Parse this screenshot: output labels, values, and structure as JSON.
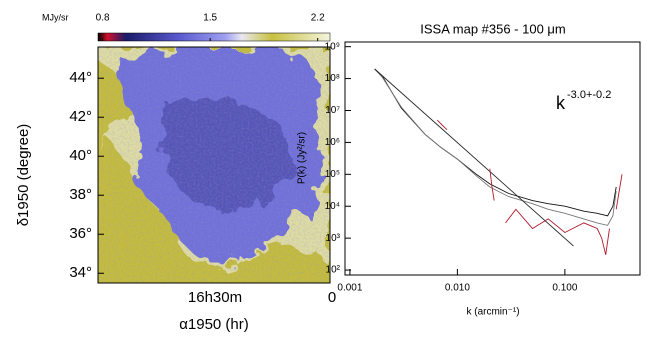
{
  "chart_data": [
    {
      "type": "map",
      "colorbar_label": "MJy/sr",
      "colorbar_lim": [
        0.77,
        2.28
      ],
      "colorbar_ticks": [
        0.8,
        1.5,
        2.2
      ],
      "ylabel": "δ1950 (degree)",
      "ylim": [
        33.5,
        45.6
      ],
      "yticks": [
        {
          "value": 34,
          "label": "34°"
        },
        {
          "value": 36,
          "label": "36°"
        },
        {
          "value": 38,
          "label": "38°"
        },
        {
          "value": 40,
          "label": "40°"
        },
        {
          "value": 42,
          "label": "42°"
        },
        {
          "value": 44,
          "label": "44°"
        }
      ],
      "xlabel": "α1950 (hr)",
      "xtick_labels": [
        "16h30m",
        "0"
      ]
    },
    {
      "type": "line",
      "title": "ISSA map #356 - 100 μm",
      "annotation": {
        "base": "k",
        "exponent": "-3.0+-0.2"
      },
      "xlabel": "k (arcmin⁻¹)",
      "ylabel": "P(k) (Jy²/sr)",
      "log_x": true,
      "log_y": true,
      "xlim": [
        0.0009,
        0.5
      ],
      "ylim": [
        70,
        1400000000
      ],
      "xticks": [
        {
          "value": 0.001,
          "label": "0.001"
        },
        {
          "value": 0.01,
          "label": "0.010"
        },
        {
          "value": 0.1,
          "label": "0.100"
        }
      ],
      "yticks": [
        {
          "value": 100,
          "label": "10²"
        },
        {
          "value": 1000,
          "label": "10³"
        },
        {
          "value": 10000,
          "label": "10⁴"
        },
        {
          "value": 100000,
          "label": "10⁵"
        },
        {
          "value": 1000000,
          "label": "10⁶"
        },
        {
          "value": 10000000,
          "label": "10⁷"
        },
        {
          "value": 100000000,
          "label": "10⁸"
        },
        {
          "value": 1000000000,
          "label": "10⁹"
        }
      ],
      "series": [
        {
          "color": "#111111",
          "x": [
            0.0017,
            0.002,
            0.003,
            0.005,
            0.007,
            0.01,
            0.015,
            0.02,
            0.03,
            0.05,
            0.07,
            0.1,
            0.15,
            0.2,
            0.25,
            0.28,
            0.3
          ],
          "values": [
            200000000,
            120000000,
            12000000,
            1800000,
            700000,
            300000,
            100000,
            50000,
            25000,
            15000,
            12000,
            10000,
            7000,
            6000,
            5000,
            10000,
            40000
          ]
        },
        {
          "color": "#777777",
          "x": [
            0.0017,
            0.002,
            0.003,
            0.005,
            0.007,
            0.01,
            0.015,
            0.02,
            0.03,
            0.05,
            0.07,
            0.1,
            0.15,
            0.2,
            0.25,
            0.28,
            0.3
          ],
          "values": [
            200000000,
            110000000,
            13000000,
            1800000,
            700000,
            300000,
            90000,
            40000,
            20000,
            12000,
            8000,
            6000,
            4000,
            3000,
            2500,
            5000,
            30000
          ]
        },
        {
          "color": "#222222",
          "x": [
            0.0017,
            0.12
          ],
          "values": [
            200000000,
            570
          ]
        },
        {
          "color": "#b0182a",
          "x": [
            0.0065,
            0.0072,
            0.008,
            null,
            0.02,
            0.021,
            0.022,
            null,
            0.028,
            0.035,
            0.05,
            0.07,
            0.1,
            0.15,
            0.2,
            0.22,
            0.24,
            0.26,
            null,
            0.3,
            0.32,
            0.34
          ],
          "values": [
            5000000,
            3500000,
            2500000,
            null,
            150000,
            40000,
            15000,
            null,
            3000,
            8000,
            2000,
            4000,
            1500,
            3000,
            2000,
            1000,
            300,
            2000,
            null,
            8000,
            30000,
            100000
          ]
        }
      ]
    }
  ]
}
